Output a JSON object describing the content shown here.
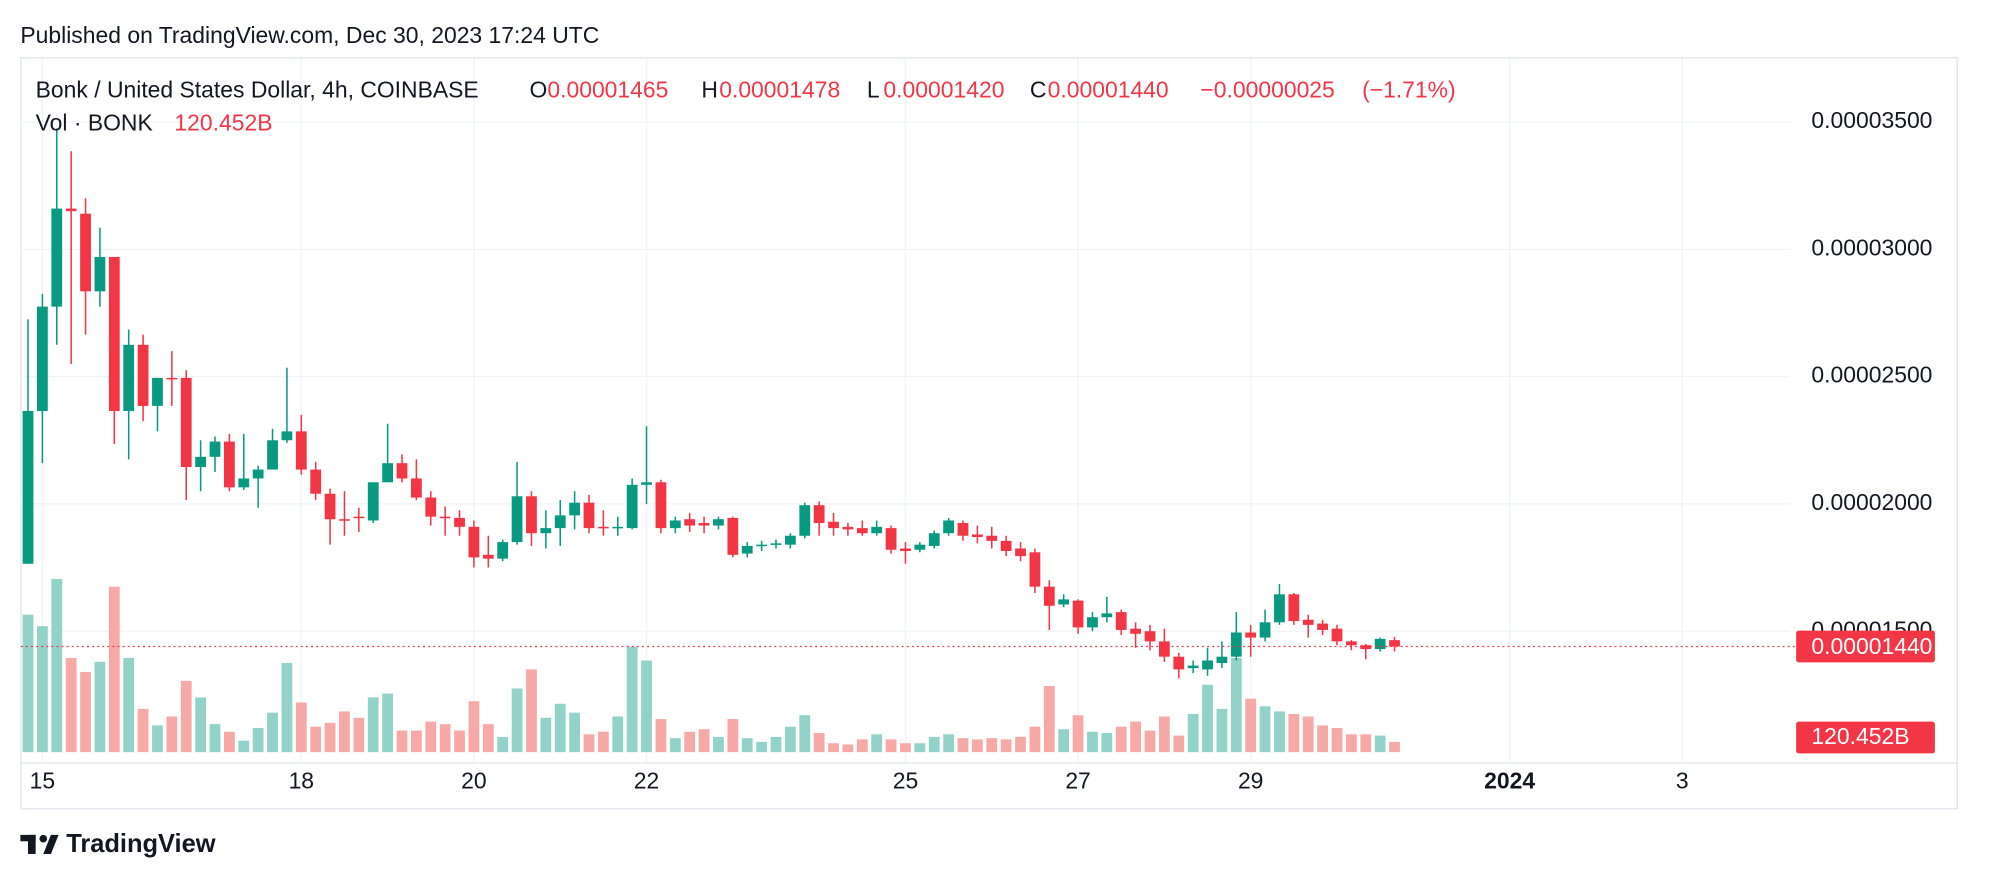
{
  "chart_data": {
    "type": "candlestick",
    "published": "Published on TradingView.com, Dec 30, 2023 17:24 UTC",
    "title": "Bonk / United States Dollar, 4h, COINBASE",
    "legend": {
      "open_label": "O",
      "open": {
        "value": 1.465e-05,
        "label": "0.00001465"
      },
      "high_label": "H",
      "high": {
        "value": 1.478e-05,
        "label": "0.00001478"
      },
      "low_label": "L",
      "low": {
        "value": 1.42e-05,
        "label": "0.00001420"
      },
      "close_label": "C",
      "close": {
        "value": 1.44e-05,
        "label": "0.00001440"
      },
      "change": {
        "value": -2.5e-07,
        "label": "−0.00000025"
      },
      "change_percent": {
        "value": -1.71,
        "label": "(−1.71%)"
      }
    },
    "brand": "TradingView",
    "up_color": "#089981",
    "down_color": "#f23645",
    "volume_up_color": "#92d2c8",
    "volume_down_color": "#f7a9a7",
    "open": [
      1.765e-05,
      2.365e-05,
      2.775e-05,
      3.16e-05,
      3.14e-05,
      2.835e-05,
      2.97e-05,
      2.365e-05,
      2.625e-05,
      2.385e-05,
      2.495e-05,
      2.495e-05,
      2.145e-05,
      2.185e-05,
      2.245e-05,
      2.065e-05,
      2.1e-05,
      2.135e-05,
      2.25e-05,
      2.285e-05,
      2.135e-05,
      2.04e-05,
      1.94e-05,
      1.95e-05,
      1.935e-05,
      2.085e-05,
      2.16e-05,
      2.1e-05,
      2.025e-05,
      1.95e-05,
      1.945e-05,
      1.91e-05,
      1.8e-05,
      1.785e-05,
      1.85e-05,
      2.03e-05,
      1.885e-05,
      1.905e-05,
      1.955e-05,
      2.005e-05,
      1.91e-05,
      1.905e-05,
      1.905e-05,
      2.075e-05,
      2.085e-05,
      1.905e-05,
      1.94e-05,
      1.925e-05,
      1.915e-05,
      1.945e-05,
      1.805e-05,
      1.835e-05,
      1.84e-05,
      1.84e-05,
      1.875e-05,
      1.995e-05,
      1.93e-05,
      1.91e-05,
      1.905e-05,
      1.885e-05,
      1.905e-05,
      1.825e-05,
      1.82e-05,
      1.835e-05,
      1.885e-05,
      1.925e-05,
      1.88e-05,
      1.875e-05,
      1.855e-05,
      1.825e-05,
      1.81e-05,
      1.675e-05,
      1.605e-05,
      1.62e-05,
      1.515e-05,
      1.555e-05,
      1.575e-05,
      1.51e-05,
      1.5e-05,
      1.46e-05,
      1.4e-05,
      1.355e-05,
      1.35e-05,
      1.375e-05,
      1.4e-05,
      1.495e-05,
      1.475e-05,
      1.535e-05,
      1.645e-05,
      1.545e-05,
      1.53e-05,
      1.51e-05,
      1.46e-05,
      1.445e-05,
      1.43e-05,
      1.465e-05
    ],
    "high": [
      2.725e-05,
      2.825e-05,
      3.475e-05,
      3.385e-05,
      3.2e-05,
      3.085e-05,
      2.97e-05,
      2.685e-05,
      2.665e-05,
      2.495e-05,
      2.6e-05,
      2.525e-05,
      2.25e-05,
      2.265e-05,
      2.275e-05,
      2.275e-05,
      2.15e-05,
      2.295e-05,
      2.535e-05,
      2.35e-05,
      2.165e-05,
      2.06e-05,
      2.05e-05,
      1.985e-05,
      2.085e-05,
      2.315e-05,
      2.195e-05,
      2.175e-05,
      2.05e-05,
      1.99e-05,
      1.975e-05,
      1.935e-05,
      1.875e-05,
      1.86e-05,
      2.165e-05,
      2.05e-05,
      1.975e-05,
      2.015e-05,
      2.05e-05,
      2.035e-05,
      1.975e-05,
      1.95e-05,
      2.1e-05,
      2.305e-05,
      2.095e-05,
      1.95e-05,
      1.965e-05,
      1.95e-05,
      1.95e-05,
      1.95e-05,
      1.85e-05,
      1.855e-05,
      1.86e-05,
      1.885e-05,
      2.005e-05,
      2.01e-05,
      1.965e-05,
      1.925e-05,
      1.935e-05,
      1.935e-05,
      1.915e-05,
      1.85e-05,
      1.85e-05,
      1.895e-05,
      1.945e-05,
      1.935e-05,
      1.915e-05,
      1.91e-05,
      1.875e-05,
      1.85e-05,
      1.825e-05,
      1.7e-05,
      1.645e-05,
      1.625e-05,
      1.575e-05,
      1.635e-05,
      1.585e-05,
      1.535e-05,
      1.525e-05,
      1.51e-05,
      1.415e-05,
      1.385e-05,
      1.435e-05,
      1.46e-05,
      1.575e-05,
      1.525e-05,
      1.585e-05,
      1.685e-05,
      1.65e-05,
      1.565e-05,
      1.545e-05,
      1.525e-05,
      1.465e-05,
      1.45e-05,
      1.475e-05,
      1.478e-05
    ],
    "low": [
      1.765e-05,
      2.16e-05,
      2.625e-05,
      2.55e-05,
      2.665e-05,
      2.775e-05,
      2.235e-05,
      2.175e-05,
      2.325e-05,
      2.285e-05,
      2.385e-05,
      2.015e-05,
      2.05e-05,
      2.125e-05,
      2.05e-05,
      2.055e-05,
      1.985e-05,
      2.135e-05,
      2.24e-05,
      2.115e-05,
      2.015e-05,
      1.84e-05,
      1.875e-05,
      1.89e-05,
      1.925e-05,
      2.085e-05,
      2.085e-05,
      2.015e-05,
      1.915e-05,
      1.875e-05,
      1.875e-05,
      1.75e-05,
      1.75e-05,
      1.775e-05,
      1.84e-05,
      1.835e-05,
      1.825e-05,
      1.835e-05,
      1.9e-05,
      1.885e-05,
      1.875e-05,
      1.875e-05,
      1.9e-05,
      2e-05,
      1.885e-05,
      1.885e-05,
      1.89e-05,
      1.885e-05,
      1.9e-05,
      1.79e-05,
      1.79e-05,
      1.815e-05,
      1.825e-05,
      1.825e-05,
      1.865e-05,
      1.875e-05,
      1.875e-05,
      1.875e-05,
      1.875e-05,
      1.875e-05,
      1.805e-05,
      1.765e-05,
      1.81e-05,
      1.825e-05,
      1.875e-05,
      1.855e-05,
      1.845e-05,
      1.825e-05,
      1.795e-05,
      1.775e-05,
      1.65e-05,
      1.505e-05,
      1.595e-05,
      1.49e-05,
      1.5e-05,
      1.535e-05,
      1.485e-05,
      1.435e-05,
      1.425e-05,
      1.38e-05,
      1.315e-05,
      1.335e-05,
      1.325e-05,
      1.355e-05,
      1.385e-05,
      1.4e-05,
      1.46e-05,
      1.525e-05,
      1.525e-05,
      1.475e-05,
      1.485e-05,
      1.445e-05,
      1.425e-05,
      1.39e-05,
      1.42e-05,
      1.42e-05
    ],
    "close": [
      2.365e-05,
      2.775e-05,
      3.16e-05,
      3.15e-05,
      2.835e-05,
      2.97e-05,
      2.365e-05,
      2.625e-05,
      2.385e-05,
      2.495e-05,
      2.49e-05,
      2.145e-05,
      2.185e-05,
      2.245e-05,
      2.065e-05,
      2.1e-05,
      2.135e-05,
      2.25e-05,
      2.285e-05,
      2.135e-05,
      2.04e-05,
      1.94e-05,
      1.935e-05,
      1.945e-05,
      2.085e-05,
      2.16e-05,
      2.1e-05,
      2.025e-05,
      1.95e-05,
      1.945e-05,
      1.91e-05,
      1.79e-05,
      1.785e-05,
      1.85e-05,
      2.03e-05,
      1.885e-05,
      1.905e-05,
      1.955e-05,
      2.005e-05,
      1.905e-05,
      1.905e-05,
      1.91e-05,
      2.075e-05,
      2.085e-05,
      1.905e-05,
      1.935e-05,
      1.915e-05,
      1.915e-05,
      1.94e-05,
      1.8e-05,
      1.835e-05,
      1.84e-05,
      1.845e-05,
      1.875e-05,
      1.995e-05,
      1.925e-05,
      1.905e-05,
      1.9e-05,
      1.885e-05,
      1.91e-05,
      1.82e-05,
      1.815e-05,
      1.84e-05,
      1.885e-05,
      1.935e-05,
      1.875e-05,
      1.87e-05,
      1.855e-05,
      1.815e-05,
      1.795e-05,
      1.675e-05,
      1.6e-05,
      1.625e-05,
      1.515e-05,
      1.555e-05,
      1.57e-05,
      1.505e-05,
      1.49e-05,
      1.46e-05,
      1.4e-05,
      1.35e-05,
      1.365e-05,
      1.385e-05,
      1.4e-05,
      1.495e-05,
      1.475e-05,
      1.535e-05,
      1.645e-05,
      1.54e-05,
      1.525e-05,
      1.505e-05,
      1.46e-05,
      1.445e-05,
      1.43e-05,
      1.47e-05,
      1.44e-05
    ],
    "volume": {
      "name": "Vol · BONK",
      "values": [
        1620,
        1485,
        2040,
        1110,
        945,
        1065,
        1950,
        1110,
        510,
        315,
        420,
        840,
        645,
        330,
        240,
        135,
        285,
        465,
        1050,
        585,
        300,
        345,
        480,
        405,
        645,
        690,
        255,
        255,
        360,
        330,
        255,
        600,
        330,
        180,
        750,
        975,
        405,
        570,
        465,
        210,
        240,
        420,
        1245,
        1080,
        390,
        165,
        240,
        270,
        180,
        390,
        165,
        120,
        180,
        300,
        435,
        225,
        105,
        90,
        150,
        210,
        150,
        105,
        105,
        180,
        210,
        165,
        150,
        165,
        150,
        180,
        300,
        780,
        270,
        435,
        240,
        225,
        300,
        360,
        255,
        420,
        195,
        450,
        795,
        510,
        1110,
        630,
        540,
        480,
        450,
        420,
        315,
        285,
        210,
        210,
        195,
        120.452
      ],
      "last_label": "120.452B"
    },
    "last_price": {
      "value": 1.44e-05,
      "label": "0.00001440"
    },
    "xlim": [
      -0.5,
      122.5
    ],
    "xticks": [
      {
        "value": 1,
        "label": "15"
      },
      {
        "value": 19,
        "label": "18"
      },
      {
        "value": 31,
        "label": "20"
      },
      {
        "value": 43,
        "label": "22"
      },
      {
        "value": 61,
        "label": "25"
      },
      {
        "value": 73,
        "label": "27"
      },
      {
        "value": 85,
        "label": "29"
      },
      {
        "value": 103,
        "label": "2024",
        "bold": true
      },
      {
        "value": 115,
        "label": "3"
      }
    ],
    "ylim": [
      9.85e-06,
      3.75e-05
    ],
    "yticks": [
      {
        "value": 1.5e-05,
        "label": "0.00001500"
      },
      {
        "value": 2e-05,
        "label": "0.00002000"
      },
      {
        "value": 2.5e-05,
        "label": "0.00002500"
      },
      {
        "value": 3e-05,
        "label": "0.00003000"
      },
      {
        "value": 3.5e-05,
        "label": "0.00003500"
      }
    ],
    "grid": true
  }
}
